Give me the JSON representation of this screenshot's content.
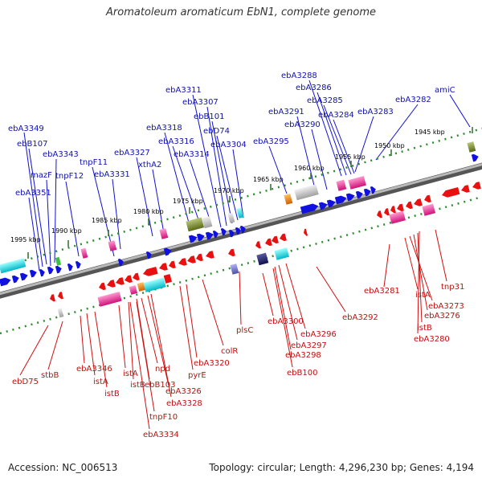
{
  "title": "Aromatoleum aromaticum EbN1, complete genome",
  "footer": {
    "accession": "Accession: NC_006513",
    "summary": "Topology: circular; Length: 4,296,230 bp; Genes: 4,194"
  },
  "ruler": [
    "1995 kbp",
    "1990 kbp",
    "1985 kbp",
    "1980 kbp",
    "1975 kbp",
    "1970 kbp",
    "1965 kbp",
    "1960 kbp",
    "1955 kbp",
    "1950 kbp",
    "1945 kbp"
  ],
  "top_labels": [
    "ebA3349",
    "ebB107",
    "ebA3343",
    "tnpF11",
    "mazF",
    "tnpF12",
    "ebA3351",
    "ebA3327",
    "ebA3331",
    "xthA2",
    "ebA3318",
    "ebA3316",
    "ebA3314",
    "ebA3311",
    "ebA3307",
    "ebB101",
    "ebD74",
    "ebA3304",
    "ebA3295",
    "ebA3291",
    "ebA3290",
    "ebA3288",
    "ebA3286",
    "ebA3285",
    "ebA3284",
    "ebA3283",
    "ebA3282",
    "amiC"
  ],
  "bottom_labels": [
    "ebD75",
    "stbB",
    "ebA3346",
    "istA",
    "istB",
    "istA",
    "istB",
    "ebB103",
    "npd",
    "ebA3326",
    "ebA3328",
    "tnpF10",
    "ebA3334",
    "pyrE",
    "ebA3320",
    "colR",
    "plsC",
    "ebA3300",
    "ebA3297",
    "ebA3298",
    "ebB100",
    "ebA3296",
    "ebA3292",
    "ebA3281",
    "istA",
    "ebA3273",
    "ebA3276",
    "istB",
    "ebA3280",
    "tnp31"
  ],
  "colors": {
    "forward": "#1010e0",
    "reverse": "#e81010",
    "ruler": "#2e8b2e",
    "backbone": "#808080"
  }
}
